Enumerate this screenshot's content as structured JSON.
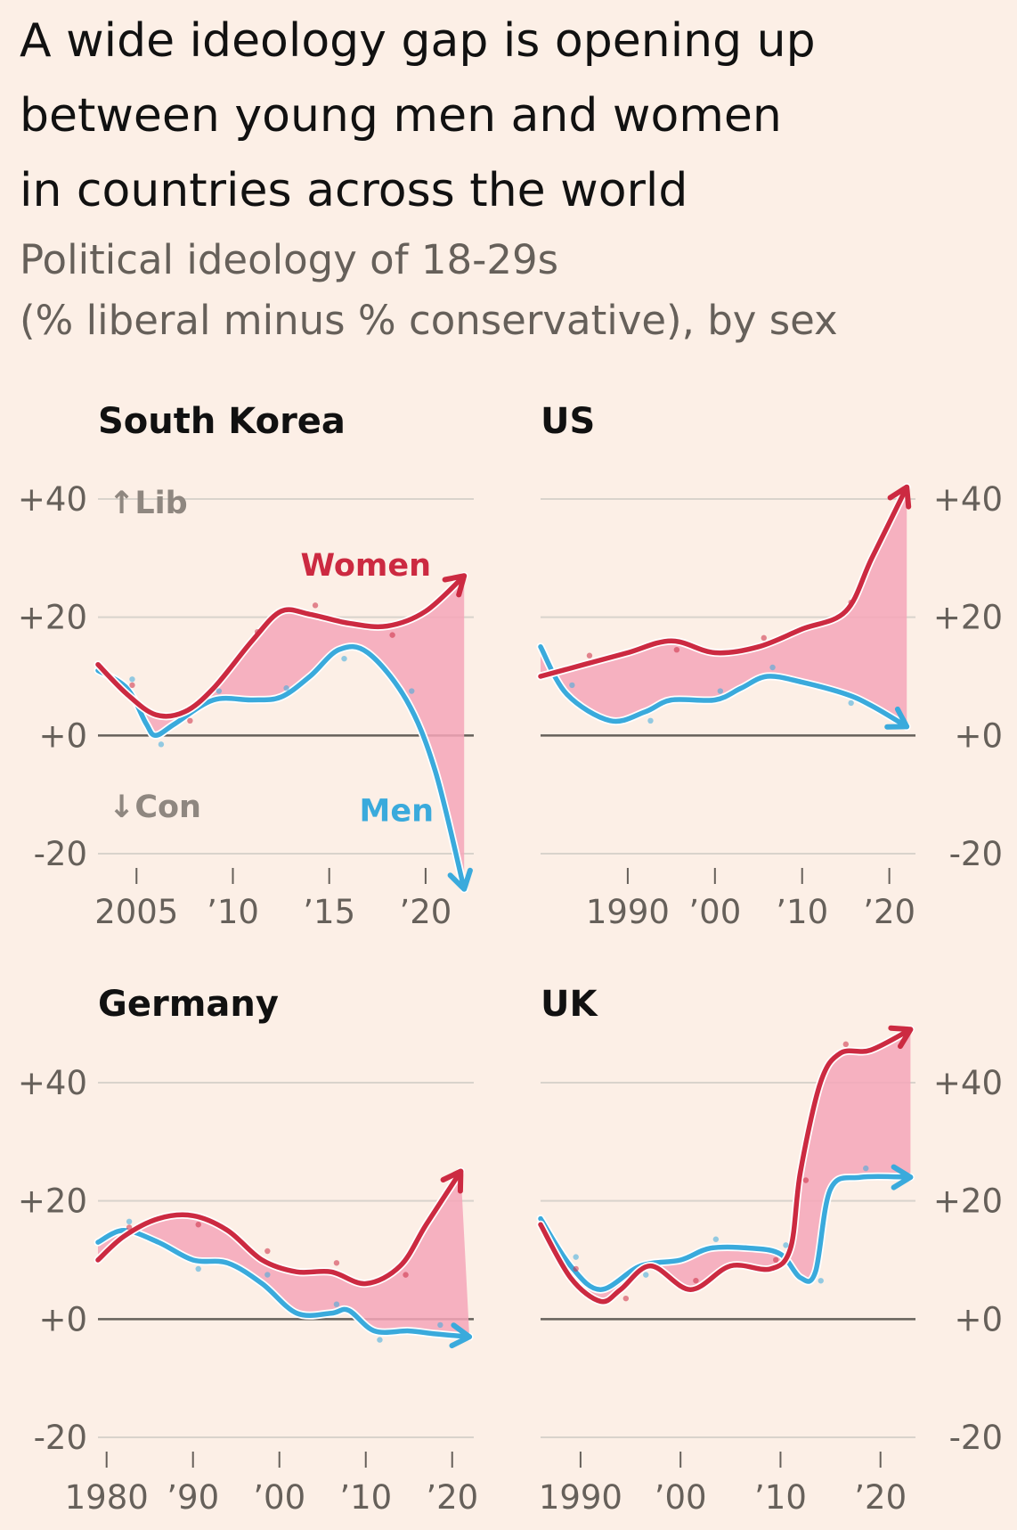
{
  "title_lines": [
    "A wide ideology gap is opening up",
    "between young men and women",
    "in countries across the world"
  ],
  "subtitle_lines": [
    "Political ideology of 18-29s",
    "(% liberal minus % conservative), by sex"
  ],
  "colors": {
    "women": "#cc2a41",
    "men": "#3aaadc",
    "gap_fill": "#f4a6b8",
    "grid": "#d9d3cc",
    "zero": "#66605a",
    "background": "#fcefe6"
  },
  "annotations": {
    "lib": "↑Lib",
    "con": "↓Con",
    "women": "Women",
    "men": "Men"
  },
  "chart_data": [
    {
      "type": "line",
      "title": "South Korea",
      "ylim": [
        -20,
        40
      ],
      "y_ticks": [
        "+40",
        "+20",
        "+0",
        "-20"
      ],
      "y_tick_side": "left",
      "x_ticks": [
        {
          "value": 2005,
          "label": "2005"
        },
        {
          "value": 2010,
          "label": "’10"
        },
        {
          "value": 2015,
          "label": "’15"
        },
        {
          "value": 2020,
          "label": "’20"
        }
      ],
      "series": [
        {
          "name": "Women",
          "points": [
            [
              2003,
              12
            ],
            [
              2004.5,
              7
            ],
            [
              2006,
              3.5
            ],
            [
              2007.5,
              4
            ],
            [
              2009,
              8
            ],
            [
              2011,
              16
            ],
            [
              2012.5,
              21
            ],
            [
              2014,
              20.5
            ],
            [
              2016,
              19
            ],
            [
              2018,
              18.5
            ],
            [
              2020,
              21
            ],
            [
              2022,
              27
            ]
          ]
        },
        {
          "name": "Men",
          "points": [
            [
              2003,
              11
            ],
            [
              2004.5,
              8
            ],
            [
              2005.5,
              2
            ],
            [
              2006,
              0
            ],
            [
              2007,
              2
            ],
            [
              2009,
              6
            ],
            [
              2011,
              6
            ],
            [
              2012.5,
              6.5
            ],
            [
              2014,
              10
            ],
            [
              2015.5,
              14.5
            ],
            [
              2017,
              14
            ],
            [
              2019,
              6
            ],
            [
              2020.5,
              -6
            ],
            [
              2022,
              -26
            ]
          ]
        }
      ]
    },
    {
      "type": "line",
      "title": "US",
      "ylim": [
        -20,
        40
      ],
      "y_ticks": [
        "+40",
        "+20",
        "+0",
        "-20"
      ],
      "y_tick_side": "right",
      "x_ticks": [
        {
          "value": 1990,
          "label": "1990"
        },
        {
          "value": 2000,
          "label": "’00"
        },
        {
          "value": 2010,
          "label": "’10"
        },
        {
          "value": 2020,
          "label": "’20"
        }
      ],
      "series": [
        {
          "name": "Women",
          "points": [
            [
              1980,
              10
            ],
            [
              1985,
              12
            ],
            [
              1990,
              14
            ],
            [
              1995,
              16
            ],
            [
              2000,
              14
            ],
            [
              2005,
              15
            ],
            [
              2010,
              18
            ],
            [
              2015,
              21
            ],
            [
              2018,
              30
            ],
            [
              2022,
              42
            ]
          ]
        },
        {
          "name": "Men",
          "points": [
            [
              1980,
              15
            ],
            [
              1983,
              7
            ],
            [
              1988,
              2.5
            ],
            [
              1992,
              4
            ],
            [
              1995,
              6
            ],
            [
              2000,
              6
            ],
            [
              2003,
              8
            ],
            [
              2006,
              10
            ],
            [
              2010,
              9
            ],
            [
              2015,
              7
            ],
            [
              2018,
              5
            ],
            [
              2022,
              1.5
            ]
          ]
        }
      ]
    },
    {
      "type": "line",
      "title": "Germany",
      "ylim": [
        -20,
        40
      ],
      "y_ticks": [
        "+40",
        "+20",
        "+0",
        "-20"
      ],
      "y_tick_side": "left",
      "x_ticks": [
        {
          "value": 1980,
          "label": "1980"
        },
        {
          "value": 1990,
          "label": "’90"
        },
        {
          "value": 2000,
          "label": "’00"
        },
        {
          "value": 2010,
          "label": "’10"
        },
        {
          "value": 2020,
          "label": "’20"
        }
      ],
      "series": [
        {
          "name": "Women",
          "points": [
            [
              1979,
              10
            ],
            [
              1982,
              14
            ],
            [
              1986,
              17
            ],
            [
              1990,
              17.5
            ],
            [
              1994,
              15
            ],
            [
              1998,
              10
            ],
            [
              2002,
              8
            ],
            [
              2006,
              8
            ],
            [
              2010,
              6
            ],
            [
              2014,
              9
            ],
            [
              2017,
              16
            ],
            [
              2021,
              25
            ]
          ]
        },
        {
          "name": "Men",
          "points": [
            [
              1979,
              13
            ],
            [
              1982,
              15
            ],
            [
              1986,
              13
            ],
            [
              1990,
              10
            ],
            [
              1994,
              9.5
            ],
            [
              1998,
              6
            ],
            [
              2002,
              1
            ],
            [
              2006,
              1
            ],
            [
              2008,
              1.5
            ],
            [
              2011,
              -2
            ],
            [
              2015,
              -2
            ],
            [
              2018,
              -2.5
            ],
            [
              2022,
              -3
            ]
          ]
        }
      ]
    },
    {
      "type": "line",
      "title": "UK",
      "ylim": [
        -20,
        40
      ],
      "y_ticks": [
        "+40",
        "+20",
        "+0",
        "-20"
      ],
      "y_tick_side": "right",
      "x_ticks": [
        {
          "value": 1990,
          "label": "1990"
        },
        {
          "value": 2000,
          "label": "’00"
        },
        {
          "value": 2010,
          "label": "’10"
        },
        {
          "value": 2020,
          "label": "’20"
        }
      ],
      "series": [
        {
          "name": "Women",
          "points": [
            [
              1986,
              16
            ],
            [
              1989,
              7
            ],
            [
              1992,
              3
            ],
            [
              1994,
              5
            ],
            [
              1997,
              9
            ],
            [
              2001,
              5
            ],
            [
              2005,
              9
            ],
            [
              2009,
              8.5
            ],
            [
              2011,
              12
            ],
            [
              2012,
              25
            ],
            [
              2014,
              40
            ],
            [
              2016,
              45
            ],
            [
              2019,
              45.5
            ],
            [
              2023,
              49
            ]
          ]
        },
        {
          "name": "Men",
          "points": [
            [
              1986,
              17
            ],
            [
              1989,
              9
            ],
            [
              1992,
              5
            ],
            [
              1996,
              9
            ],
            [
              2000,
              10
            ],
            [
              2003,
              12
            ],
            [
              2007,
              12
            ],
            [
              2010,
              11
            ],
            [
              2012,
              7
            ],
            [
              2013.5,
              8
            ],
            [
              2015,
              22
            ],
            [
              2018,
              24
            ],
            [
              2023,
              24
            ]
          ]
        }
      ]
    }
  ]
}
